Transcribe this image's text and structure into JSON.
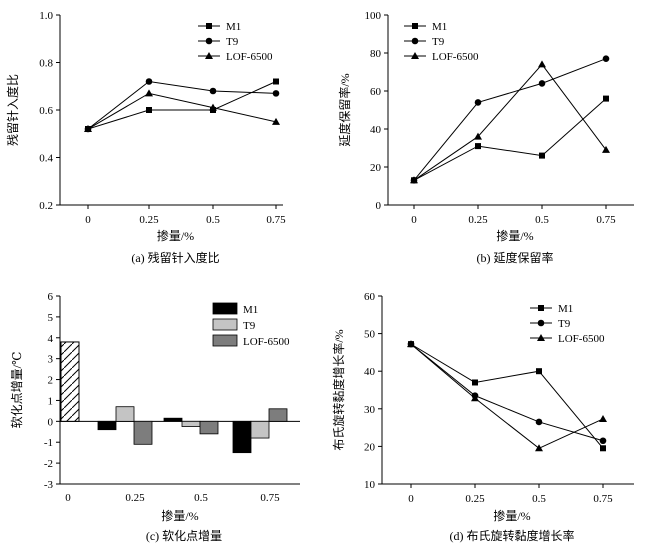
{
  "chart_data": [
    {
      "panel": "a",
      "type": "line",
      "caption": "(a) 残留针入度比",
      "xlabel": "掺量/%",
      "ylabel": "残留针入度比",
      "categories": [
        "0",
        "0.25",
        "0.5",
        "0.75"
      ],
      "ylim": [
        0.2,
        1.0
      ],
      "yticks": [
        "0.2",
        "0.4",
        "0.6",
        "0.8",
        "1.0"
      ],
      "legend_position": "top-right",
      "series": [
        {
          "name": "M1",
          "marker": "square",
          "values": [
            0.52,
            0.6,
            0.6,
            0.72
          ]
        },
        {
          "name": "T9",
          "marker": "circle",
          "values": [
            0.52,
            0.72,
            0.68,
            0.67
          ]
        },
        {
          "name": "LOF-6500",
          "marker": "triangle",
          "values": [
            0.52,
            0.67,
            0.61,
            0.55
          ]
        }
      ]
    },
    {
      "panel": "b",
      "type": "line",
      "caption": "(b) 延度保留率",
      "xlabel": "掺量/%",
      "ylabel": "延度保留率/%",
      "categories": [
        "0",
        "0.25",
        "0.5",
        "0.75"
      ],
      "ylim": [
        0,
        100
      ],
      "yticks": [
        "0",
        "20",
        "40",
        "60",
        "80",
        "100"
      ],
      "legend_position": "top-left",
      "series": [
        {
          "name": "M1",
          "marker": "square",
          "values": [
            13,
            31,
            26,
            56
          ]
        },
        {
          "name": "T9",
          "marker": "circle",
          "values": [
            13,
            54,
            64,
            77
          ]
        },
        {
          "name": "LOF-6500",
          "marker": "triangle",
          "values": [
            13,
            36,
            74,
            29
          ]
        }
      ]
    },
    {
      "panel": "c",
      "type": "bar",
      "caption": "(c) 软化点增量",
      "xlabel": "掺量/%",
      "ylabel": "软化点增量/℃",
      "categories": [
        "0",
        "0.25",
        "0.5",
        "0.75"
      ],
      "ylim": [
        -3,
        6
      ],
      "yticks": [
        "-3",
        "-2",
        "-1",
        "0",
        "1",
        "2",
        "3",
        "4",
        "5",
        "6"
      ],
      "legend_position": "top-right",
      "baseline_bar": {
        "category": "0",
        "value": 3.8,
        "fill": "hatched"
      },
      "series": [
        {
          "name": "M1",
          "color": "#000000",
          "values": [
            null,
            -0.4,
            0.15,
            -1.5
          ]
        },
        {
          "name": "T9",
          "color": "#c4c4c4",
          "values": [
            null,
            0.7,
            -0.25,
            -0.8
          ]
        },
        {
          "name": "LOF-6500",
          "color": "#7d7d7d",
          "values": [
            null,
            -1.1,
            -0.6,
            0.6
          ]
        }
      ]
    },
    {
      "panel": "d",
      "type": "line",
      "caption": "(d) 布氏旋转黏度增长率",
      "xlabel": "掺量/%",
      "ylabel": "布氏旋转黏度增长率/%",
      "categories": [
        "0",
        "0.25",
        "0.5",
        "0.75"
      ],
      "ylim": [
        10,
        60
      ],
      "yticks": [
        "10",
        "20",
        "30",
        "40",
        "50",
        "60"
      ],
      "legend_position": "top-right",
      "series": [
        {
          "name": "M1",
          "marker": "square",
          "values": [
            47.2,
            37,
            40,
            19.5
          ]
        },
        {
          "name": "T9",
          "marker": "circle",
          "values": [
            47.2,
            33.5,
            26.5,
            21.5
          ]
        },
        {
          "name": "LOF-6500",
          "marker": "triangle",
          "values": [
            47.2,
            32.8,
            19.5,
            27.3
          ]
        }
      ]
    }
  ]
}
